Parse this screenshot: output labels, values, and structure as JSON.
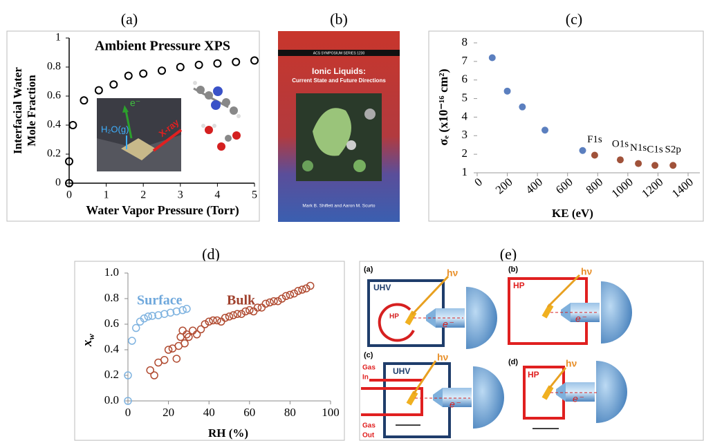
{
  "panel_labels": [
    "(a)",
    "(b)",
    "(c)",
    "(d)",
    "(e)"
  ],
  "chart_data": [
    {
      "type": "scatter",
      "title": "Ambient Pressure XPS",
      "xlabel": "Water Vapor Pressure (Torr)",
      "ylabel": [
        "Interfacial Water",
        "Mole Fraction"
      ],
      "xlim": [
        0,
        5
      ],
      "ylim": [
        0,
        1
      ],
      "xticks": [
        0,
        1,
        2,
        3,
        4,
        5
      ],
      "yticks": [
        0,
        0.2,
        0.4,
        0.6,
        0.8,
        1
      ],
      "annotations": [
        "e⁻",
        "H₂O(g)",
        "X-ray"
      ],
      "series": [
        {
          "name": null,
          "color": "#000000",
          "filled": false,
          "x": [
            0,
            0,
            0.1,
            0.4,
            0.8,
            1.2,
            1.6,
            2,
            2.5,
            3,
            3.5,
            4,
            4.5,
            5
          ],
          "values": [
            0,
            0.15,
            0.4,
            0.57,
            0.64,
            0.68,
            0.74,
            0.755,
            0.775,
            0.8,
            0.815,
            0.825,
            0.835,
            0.845
          ]
        }
      ]
    },
    {
      "type": "scatter",
      "xlabel": "KE (eV)",
      "ylabel": "σₑ (x10⁻¹⁶ cm²)",
      "xlim": [
        0,
        1400
      ],
      "ylim": [
        1,
        8
      ],
      "xticks": [
        0,
        200,
        400,
        600,
        800,
        1000,
        1200,
        1400
      ],
      "yticks": [
        1,
        2,
        3,
        4,
        5,
        6,
        7,
        8
      ],
      "series": [
        {
          "name": null,
          "color": "#5b7fbf",
          "filled": true,
          "x": [
            100,
            200,
            300,
            450,
            700
          ],
          "values": [
            7.2,
            5.4,
            4.55,
            3.3,
            2.2
          ]
        },
        {
          "name": null,
          "color": "#a0523a",
          "filled": true,
          "x": [
            780,
            950,
            1070,
            1180,
            1300
          ],
          "values": [
            1.95,
            1.7,
            1.5,
            1.4,
            1.4
          ],
          "point_labels": [
            "F1s",
            "O1s",
            "N1s",
            "C1s",
            "S2p"
          ]
        }
      ]
    },
    {
      "type": "scatter",
      "xlabel": "RH (%)",
      "ylabel": "x",
      "ylabel_sub": "w",
      "xlim": [
        0,
        100
      ],
      "ylim": [
        0,
        1
      ],
      "xticks": [
        0,
        20,
        40,
        60,
        80,
        100
      ],
      "yticks": [
        {
          "value": 0,
          "label": "0.0"
        },
        {
          "value": 0.2,
          "label": "0.2"
        },
        {
          "value": 0.4,
          "label": "0.4"
        },
        {
          "value": 0.6,
          "label": "0.6"
        },
        {
          "value": 0.8,
          "label": "0.8"
        },
        {
          "value": 1,
          "label": "1.0"
        }
      ],
      "series": [
        {
          "name": "Surface",
          "color": "#7fb3e0",
          "filled": false,
          "x": [
            0,
            0,
            2,
            4,
            6,
            8,
            10,
            12,
            15,
            18,
            21,
            24,
            27,
            29
          ],
          "values": [
            0,
            0.2,
            0.47,
            0.57,
            0.62,
            0.645,
            0.66,
            0.665,
            0.67,
            0.68,
            0.69,
            0.7,
            0.71,
            0.72
          ]
        },
        {
          "name": "Bulk",
          "color": "#b04a30",
          "filled": false,
          "x": [
            11,
            13,
            15,
            18,
            20,
            22,
            24,
            25,
            26,
            27,
            28,
            29,
            30,
            32,
            34,
            36,
            38,
            40,
            42,
            44,
            46,
            48,
            50,
            52,
            54,
            56,
            58,
            60,
            62,
            64,
            66,
            68,
            70,
            72,
            74,
            76,
            78,
            80,
            82,
            84,
            86,
            88,
            90
          ],
          "values": [
            0.24,
            0.2,
            0.3,
            0.32,
            0.4,
            0.41,
            0.33,
            0.43,
            0.5,
            0.55,
            0.45,
            0.52,
            0.5,
            0.55,
            0.52,
            0.56,
            0.6,
            0.62,
            0.63,
            0.63,
            0.62,
            0.65,
            0.66,
            0.67,
            0.68,
            0.68,
            0.7,
            0.71,
            0.7,
            0.73,
            0.73,
            0.76,
            0.77,
            0.78,
            0.78,
            0.8,
            0.82,
            0.83,
            0.84,
            0.86,
            0.87,
            0.88,
            0.9
          ]
        }
      ]
    }
  ],
  "book": {
    "series": "ACS SYMPOSIUM SERIES 1230",
    "title": "Ionic Liquids:",
    "subtitle": "Current State and Future Directions",
    "authors": "Mark B. Shiflett and Aaron M. Scurto"
  },
  "diagram": {
    "sub_labels": [
      "(a)",
      "(b)",
      "(c)",
      "(d)"
    ],
    "photon": "hν",
    "electron": "e⁻",
    "uhv": "UHV",
    "hp": "HP",
    "gas_in": [
      "Gas",
      "In"
    ],
    "gas_out": [
      "Gas",
      "Out"
    ]
  }
}
